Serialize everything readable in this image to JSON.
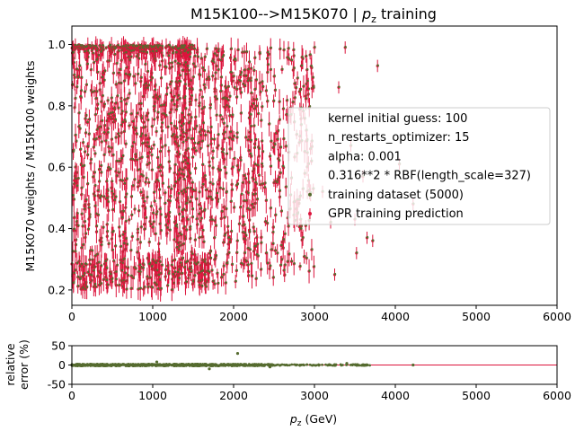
{
  "chart_data": [
    {
      "type": "scatter",
      "title": "M15K100-->M15K070 | ",
      "title_math": "p",
      "title_math_sub": "z",
      "title_suffix": " training",
      "xlabel": "",
      "ylabel": "M15K070 weights / M15K100 weights",
      "xlim": [
        0,
        6000
      ],
      "ylim": [
        0.15,
        1.06
      ],
      "xticks": [
        0,
        1000,
        2000,
        3000,
        4000,
        5000,
        6000
      ],
      "yticks": [
        0.2,
        0.4,
        0.6,
        0.8,
        1.0
      ],
      "ytick_labels": [
        "0.2",
        "0.4",
        "0.6",
        "0.8",
        "1.0"
      ],
      "grid": false,
      "legend_position": "center-right",
      "legend": [
        "kernel initial guess: 100",
        "n_restarts_optimizer: 15",
        "alpha: 0.001",
        "0.316**2 * RBF(length_scale=327)",
        "training dataset (5000)",
        "GPR training prediction"
      ],
      "colors": {
        "training": "#556b2f",
        "prediction": "#dc143c"
      },
      "series": [
        {
          "name": "training dataset (5000)",
          "description_points": [
            {
              "x": 2900,
              "y": 0.72
            },
            {
              "x": 2950,
              "y": 0.66
            },
            {
              "x": 3000,
              "y": 0.99
            },
            {
              "x": 3100,
              "y": 0.52
            },
            {
              "x": 3200,
              "y": 0.42
            },
            {
              "x": 3250,
              "y": 0.25
            },
            {
              "x": 3300,
              "y": 0.86
            },
            {
              "x": 3380,
              "y": 0.99
            },
            {
              "x": 3450,
              "y": 0.67
            },
            {
              "x": 3500,
              "y": 0.43
            },
            {
              "x": 3520,
              "y": 0.32
            },
            {
              "x": 3600,
              "y": 0.57
            },
            {
              "x": 3650,
              "y": 0.37
            },
            {
              "x": 3720,
              "y": 0.36
            },
            {
              "x": 3780,
              "y": 0.93
            },
            {
              "x": 4050,
              "y": 0.61
            },
            {
              "x": 4220,
              "y": 0.48
            }
          ]
        },
        {
          "name": "GPR training prediction"
        }
      ]
    },
    {
      "type": "scatter",
      "title": "",
      "ylabel": "relative\nerror (%)",
      "ylabel_lines": [
        "relative",
        "error (%)"
      ],
      "xlabel_math": "p",
      "xlabel_math_sub": "z",
      "xlabel_suffix": " (GeV)",
      "xlim": [
        0,
        6000
      ],
      "ylim": [
        -50,
        50
      ],
      "xticks": [
        0,
        1000,
        2000,
        3000,
        4000,
        5000,
        6000
      ],
      "yticks": [
        -50,
        0,
        50
      ],
      "reference_line": 0,
      "outliers": [
        {
          "x": 2050,
          "y": 30
        },
        {
          "x": 1700,
          "y": -10
        },
        {
          "x": 1050,
          "y": 8
        },
        {
          "x": 2450,
          "y": -5
        },
        {
          "x": 3400,
          "y": 4
        },
        {
          "x": 4220,
          "y": 0
        }
      ]
    }
  ]
}
